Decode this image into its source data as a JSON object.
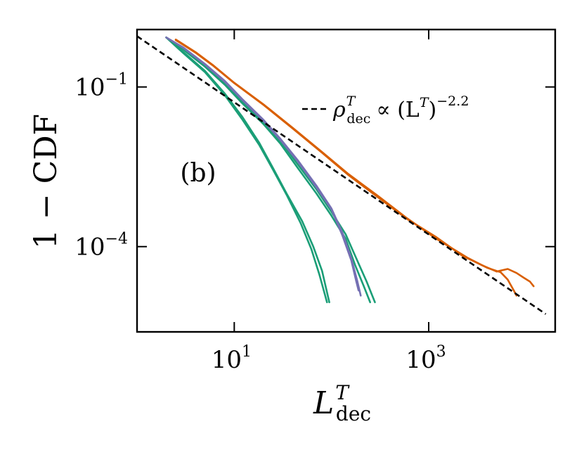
{
  "chart_data": {
    "type": "line",
    "panel_label": "(b)",
    "xlabel_base": "L",
    "xlabel_sup": "T",
    "xlabel_sub": "dec",
    "ylabel": "1 − CDF",
    "xscale": "log",
    "yscale": "log",
    "xlim": [
      1,
      20000
    ],
    "ylim": [
      2.5e-06,
      1.2
    ],
    "xticks": [
      {
        "value": 10,
        "base": "10",
        "exp": "1"
      },
      {
        "value": 1000,
        "base": "10",
        "exp": "3"
      }
    ],
    "yticks": [
      {
        "value": 0.1,
        "base": "10",
        "exp": "−1"
      },
      {
        "value": 0.0001,
        "base": "10",
        "exp": "−4"
      }
    ],
    "legend": {
      "placement": "top-right",
      "rho": "ρ",
      "rho_sup": "T",
      "rho_sub": "dec",
      "relation": "∝ (L",
      "paren_sup": "T",
      "close": ")",
      "exponent": "−2.2"
    },
    "colors": {
      "orange": "#d95f02",
      "purple": "#7570b3",
      "green": "#1b9e77",
      "fit": "#000000"
    },
    "fit_line": {
      "points": [
        [
          1,
          0.9
        ],
        [
          16000,
          5.4e-06
        ]
      ]
    },
    "series": [
      {
        "color": "#1b9e77",
        "points": [
          [
            2,
            0.85
          ],
          [
            3,
            0.45
          ],
          [
            5,
            0.2
          ],
          [
            8,
            0.075
          ],
          [
            12,
            0.028
          ],
          [
            18,
            0.009
          ],
          [
            25,
            0.003
          ],
          [
            35,
            0.00095
          ],
          [
            50,
            0.0003
          ],
          [
            65,
            0.0001
          ],
          [
            80,
            3.5e-05
          ],
          [
            95,
            9e-06
          ]
        ]
      },
      {
        "color": "#1b9e77",
        "points": [
          [
            2,
            0.85
          ],
          [
            3,
            0.43
          ],
          [
            5,
            0.19
          ],
          [
            8,
            0.07
          ],
          [
            12,
            0.025
          ],
          [
            18,
            0.0082
          ],
          [
            25,
            0.0028
          ],
          [
            35,
            0.0009
          ],
          [
            48,
            0.00028
          ],
          [
            62,
            9e-05
          ],
          [
            75,
            3e-05
          ],
          [
            90,
            9e-06
          ]
        ]
      },
      {
        "color": "#1b9e77",
        "points": [
          [
            2,
            0.85
          ],
          [
            3,
            0.52
          ],
          [
            5,
            0.26
          ],
          [
            8,
            0.12
          ],
          [
            12,
            0.055
          ],
          [
            20,
            0.022
          ],
          [
            30,
            0.0095
          ],
          [
            45,
            0.0035
          ],
          [
            70,
            0.0012
          ],
          [
            100,
            0.00045
          ],
          [
            140,
            0.00017
          ],
          [
            180,
            6e-05
          ],
          [
            230,
            2.2e-05
          ],
          [
            280,
            9e-06
          ]
        ]
      },
      {
        "color": "#1b9e77",
        "points": [
          [
            2,
            0.85
          ],
          [
            3,
            0.5
          ],
          [
            5,
            0.24
          ],
          [
            8,
            0.11
          ],
          [
            12,
            0.05
          ],
          [
            20,
            0.02
          ],
          [
            30,
            0.0085
          ],
          [
            45,
            0.003
          ],
          [
            70,
            0.001
          ],
          [
            100,
            0.00038
          ],
          [
            140,
            0.00014
          ],
          [
            175,
            4.5e-05
          ],
          [
            215,
            1.8e-05
          ],
          [
            250,
            9e-06
          ]
        ]
      },
      {
        "color": "#7570b3",
        "points": [
          [
            2,
            0.85
          ],
          [
            3,
            0.55
          ],
          [
            5,
            0.27
          ],
          [
            8,
            0.13
          ],
          [
            12,
            0.06
          ],
          [
            20,
            0.024
          ],
          [
            30,
            0.0105
          ],
          [
            45,
            0.0042
          ],
          [
            70,
            0.0014
          ],
          [
            100,
            0.00052
          ],
          [
            130,
            0.00018
          ],
          [
            160,
            6e-05
          ],
          [
            185,
            2.2e-05
          ],
          [
            200,
            1.2e-05
          ]
        ]
      },
      {
        "color": "#7570b3",
        "points": [
          [
            2,
            0.85
          ],
          [
            3,
            0.54
          ],
          [
            5,
            0.265
          ],
          [
            8,
            0.125
          ],
          [
            12,
            0.058
          ],
          [
            20,
            0.023
          ],
          [
            30,
            0.01
          ],
          [
            45,
            0.004
          ],
          [
            70,
            0.0013
          ],
          [
            100,
            0.0005
          ],
          [
            130,
            0.00016
          ],
          [
            160,
            5.5e-05
          ],
          [
            180,
            2.2e-05
          ],
          [
            190,
            1.5e-05
          ]
        ]
      },
      {
        "color": "#d95f02",
        "points": [
          [
            2.5,
            0.78
          ],
          [
            4,
            0.45
          ],
          [
            6,
            0.26
          ],
          [
            10,
            0.12
          ],
          [
            20,
            0.047
          ],
          [
            40,
            0.017
          ],
          [
            80,
            0.006
          ],
          [
            150,
            0.0023
          ],
          [
            300,
            0.0009
          ],
          [
            600,
            0.00034
          ],
          [
            1200,
            0.00014
          ],
          [
            2500,
            6.2e-05
          ],
          [
            4000,
            4e-05
          ],
          [
            5500,
            3.3e-05
          ],
          [
            6500,
            2.4e-05
          ],
          [
            7500,
            1.5e-05
          ],
          [
            8000,
            1.2e-05
          ]
        ]
      },
      {
        "color": "#d95f02",
        "points": [
          [
            2.5,
            0.76
          ],
          [
            4,
            0.44
          ],
          [
            6,
            0.255
          ],
          [
            10,
            0.118
          ],
          [
            20,
            0.046
          ],
          [
            40,
            0.0165
          ],
          [
            80,
            0.0058
          ],
          [
            150,
            0.0022
          ],
          [
            300,
            0.00085
          ],
          [
            600,
            0.00033
          ],
          [
            1200,
            0.00015
          ],
          [
            2200,
            6.8e-05
          ],
          [
            3500,
            4.5e-05
          ],
          [
            5000,
            3.4e-05
          ],
          [
            6500,
            3.8e-05
          ],
          [
            8000,
            3.2e-05
          ],
          [
            9500,
            2.6e-05
          ],
          [
            11000,
            2.2e-05
          ],
          [
            12000,
            1.8e-05
          ]
        ]
      }
    ]
  }
}
